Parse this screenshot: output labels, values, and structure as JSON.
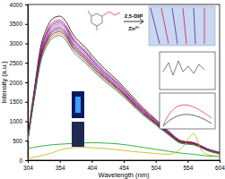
{
  "chart_data": {
    "type": "line",
    "x_label": "Wavelength (nm)",
    "y_label": "Intensity (a.u.)",
    "annotations": [
      {
        "text": "2,5-DIP"
      },
      {
        "text": "Zn²⁺"
      }
    ],
    "x": [
      304,
      314,
      324,
      334,
      344,
      354,
      364,
      374,
      384,
      394,
      404,
      424,
      444,
      464,
      484,
      504,
      524,
      544,
      564,
      574,
      584,
      604
    ],
    "xlim": [
      304,
      604
    ],
    "xticks": [
      304,
      354,
      404,
      454,
      504,
      554,
      604
    ],
    "ylim": [
      0,
      4000
    ],
    "yticks": [
      0,
      500,
      1000,
      1500,
      2000,
      2500,
      3000,
      3500,
      4000
    ],
    "series": [
      {
        "color": "#000000",
        "values": [
          600,
          1800,
          2900,
          3400,
          3650,
          3700,
          3550,
          3250,
          3050,
          2900,
          2700,
          2350,
          2050,
          1700,
          1350,
          1050,
          750,
          500,
          450,
          380,
          300,
          200
        ]
      },
      {
        "color": "#ff0000",
        "values": [
          580,
          1750,
          2820,
          3310,
          3550,
          3600,
          3450,
          3160,
          2970,
          2820,
          2630,
          2290,
          2000,
          1650,
          1310,
          1020,
          730,
          490,
          440,
          370,
          290,
          190
        ]
      },
      {
        "color": "#0000ff",
        "values": [
          570,
          1720,
          2780,
          3260,
          3500,
          3550,
          3400,
          3120,
          2930,
          2780,
          2590,
          2250,
          1970,
          1630,
          1290,
          1010,
          720,
          480,
          430,
          360,
          290,
          190
        ]
      },
      {
        "color": "#ff00ff",
        "values": [
          560,
          1700,
          2740,
          3220,
          3450,
          3500,
          3360,
          3070,
          2890,
          2740,
          2550,
          2220,
          1940,
          1610,
          1280,
          990,
          710,
          470,
          430,
          360,
          280,
          180
        ]
      },
      {
        "color": "#808000",
        "values": [
          550,
          1680,
          2700,
          3170,
          3400,
          3450,
          3310,
          3030,
          2850,
          2700,
          2520,
          2190,
          1910,
          1580,
          1260,
          980,
          700,
          470,
          420,
          350,
          280,
          180
        ]
      },
      {
        "color": "#000080",
        "values": [
          540,
          1650,
          2660,
          3120,
          3350,
          3400,
          3260,
          2990,
          2810,
          2660,
          2480,
          2160,
          1880,
          1560,
          1240,
          960,
          690,
          460,
          420,
          350,
          270,
          180
        ]
      },
      {
        "color": "#800080",
        "values": [
          530,
          1630,
          2620,
          3080,
          3300,
          3350,
          3210,
          2940,
          2770,
          2620,
          2440,
          2130,
          1850,
          1540,
          1220,
          950,
          680,
          450,
          410,
          340,
          270,
          170
        ]
      },
      {
        "color": "#800000",
        "values": [
          520,
          1600,
          2580,
          3030,
          3250,
          3300,
          3170,
          2900,
          2730,
          2580,
          2400,
          2100,
          1830,
          1510,
          1200,
          940,
          670,
          450,
          400,
          340,
          260,
          170
        ]
      },
      {
        "color": "#ff8000",
        "values": [
          510,
          1580,
          2540,
          2990,
          3200,
          3250,
          3120,
          2860,
          2690,
          2540,
          2370,
          2060,
          1800,
          1490,
          1180,
          920,
          660,
          440,
          400,
          330,
          260,
          170
        ]
      },
      {
        "color": "#008080",
        "values": [
          500,
          1550,
          2500,
          2940,
          3150,
          3200,
          3070,
          2810,
          2640,
          2500,
          2330,
          2030,
          1770,
          1470,
          1160,
          910,
          650,
          430,
          390,
          330,
          250,
          160
        ]
      },
      {
        "color": "#00a000",
        "values": [
          300,
          330,
          360,
          380,
          400,
          410,
          420,
          430,
          440,
          445,
          450,
          440,
          420,
          380,
          330,
          280,
          230,
          180,
          150,
          130,
          110,
          100
        ]
      },
      {
        "color": "#b8b800",
        "values": [
          50,
          80,
          110,
          150,
          200,
          260,
          300,
          320,
          330,
          330,
          320,
          300,
          270,
          230,
          200,
          170,
          150,
          300,
          680,
          300,
          150,
          100
        ]
      }
    ]
  }
}
